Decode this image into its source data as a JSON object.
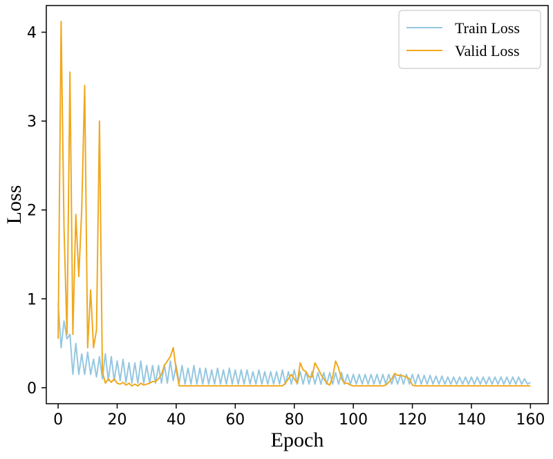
{
  "chart_data": {
    "type": "line",
    "title": "",
    "xlabel": "Epoch",
    "ylabel": "Loss",
    "xlim": [
      -4,
      166
    ],
    "ylim": [
      -0.18,
      4.3
    ],
    "x_ticks": [
      0,
      20,
      40,
      60,
      80,
      100,
      120,
      140,
      160
    ],
    "x_tick_labels": [
      "0",
      "20",
      "40",
      "60",
      "80",
      "100",
      "120",
      "140",
      "160"
    ],
    "y_ticks": [
      0,
      1,
      2,
      3,
      4
    ],
    "y_tick_labels": [
      "0",
      "1",
      "2",
      "3",
      "4"
    ],
    "grid": false,
    "legend_position": "top-right",
    "series": [
      {
        "name": "Train Loss",
        "color": "#94c7e0",
        "points": [
          [
            0,
            0.95
          ],
          [
            1,
            0.45
          ],
          [
            2,
            0.75
          ],
          [
            3,
            0.55
          ],
          [
            4,
            0.6
          ],
          [
            5,
            0.15
          ],
          [
            6,
            0.5
          ],
          [
            7,
            0.15
          ],
          [
            8,
            0.38
          ],
          [
            9,
            0.15
          ],
          [
            10,
            0.4
          ],
          [
            11,
            0.15
          ],
          [
            12,
            0.32
          ],
          [
            13,
            0.12
          ],
          [
            14,
            0.35
          ],
          [
            15,
            0.1
          ],
          [
            16,
            0.38
          ],
          [
            17,
            0.08
          ],
          [
            18,
            0.35
          ],
          [
            19,
            0.08
          ],
          [
            20,
            0.3
          ],
          [
            21,
            0.08
          ],
          [
            22,
            0.32
          ],
          [
            23,
            0.06
          ],
          [
            24,
            0.28
          ],
          [
            25,
            0.05
          ],
          [
            26,
            0.28
          ],
          [
            27,
            0.05
          ],
          [
            28,
            0.3
          ],
          [
            29,
            0.05
          ],
          [
            30,
            0.25
          ],
          [
            31,
            0.05
          ],
          [
            32,
            0.25
          ],
          [
            33,
            0.05
          ],
          [
            34,
            0.25
          ],
          [
            35,
            0.05
          ],
          [
            36,
            0.26
          ],
          [
            37,
            0.05
          ],
          [
            38,
            0.3
          ],
          [
            39,
            0.08
          ],
          [
            40,
            0.25
          ],
          [
            41,
            0.05
          ],
          [
            42,
            0.25
          ],
          [
            43,
            0.04
          ],
          [
            44,
            0.22
          ],
          [
            45,
            0.04
          ],
          [
            46,
            0.25
          ],
          [
            47,
            0.04
          ],
          [
            48,
            0.22
          ],
          [
            49,
            0.04
          ],
          [
            50,
            0.22
          ],
          [
            51,
            0.04
          ],
          [
            52,
            0.2
          ],
          [
            53,
            0.04
          ],
          [
            54,
            0.22
          ],
          [
            55,
            0.04
          ],
          [
            56,
            0.2
          ],
          [
            57,
            0.04
          ],
          [
            58,
            0.22
          ],
          [
            59,
            0.04
          ],
          [
            60,
            0.2
          ],
          [
            61,
            0.04
          ],
          [
            62,
            0.2
          ],
          [
            63,
            0.04
          ],
          [
            64,
            0.2
          ],
          [
            65,
            0.04
          ],
          [
            66,
            0.18
          ],
          [
            67,
            0.04
          ],
          [
            68,
            0.2
          ],
          [
            69,
            0.04
          ],
          [
            70,
            0.18
          ],
          [
            71,
            0.04
          ],
          [
            72,
            0.18
          ],
          [
            73,
            0.04
          ],
          [
            74,
            0.18
          ],
          [
            75,
            0.04
          ],
          [
            76,
            0.2
          ],
          [
            77,
            0.04
          ],
          [
            78,
            0.18
          ],
          [
            79,
            0.04
          ],
          [
            80,
            0.2
          ],
          [
            81,
            0.04
          ],
          [
            82,
            0.18
          ],
          [
            83,
            0.04
          ],
          [
            84,
            0.18
          ],
          [
            85,
            0.04
          ],
          [
            86,
            0.18
          ],
          [
            87,
            0.04
          ],
          [
            88,
            0.17
          ],
          [
            89,
            0.04
          ],
          [
            90,
            0.17
          ],
          [
            91,
            0.04
          ],
          [
            92,
            0.17
          ],
          [
            93,
            0.04
          ],
          [
            94,
            0.17
          ],
          [
            95,
            0.04
          ],
          [
            96,
            0.17
          ],
          [
            97,
            0.04
          ],
          [
            98,
            0.15
          ],
          [
            99,
            0.04
          ],
          [
            100,
            0.15
          ],
          [
            101,
            0.04
          ],
          [
            102,
            0.15
          ],
          [
            103,
            0.04
          ],
          [
            104,
            0.15
          ],
          [
            105,
            0.04
          ],
          [
            106,
            0.15
          ],
          [
            107,
            0.04
          ],
          [
            108,
            0.15
          ],
          [
            109,
            0.04
          ],
          [
            110,
            0.15
          ],
          [
            111,
            0.04
          ],
          [
            112,
            0.15
          ],
          [
            113,
            0.04
          ],
          [
            114,
            0.15
          ],
          [
            115,
            0.04
          ],
          [
            116,
            0.15
          ],
          [
            117,
            0.04
          ],
          [
            118,
            0.15
          ],
          [
            119,
            0.04
          ],
          [
            120,
            0.15
          ],
          [
            121,
            0.04
          ],
          [
            122,
            0.15
          ],
          [
            123,
            0.04
          ],
          [
            124,
            0.14
          ],
          [
            125,
            0.04
          ],
          [
            126,
            0.14
          ],
          [
            127,
            0.04
          ],
          [
            128,
            0.13
          ],
          [
            129,
            0.04
          ],
          [
            130,
            0.13
          ],
          [
            131,
            0.04
          ],
          [
            132,
            0.12
          ],
          [
            133,
            0.04
          ],
          [
            134,
            0.12
          ],
          [
            135,
            0.04
          ],
          [
            136,
            0.12
          ],
          [
            137,
            0.04
          ],
          [
            138,
            0.12
          ],
          [
            139,
            0.04
          ],
          [
            140,
            0.12
          ],
          [
            141,
            0.04
          ],
          [
            142,
            0.12
          ],
          [
            143,
            0.04
          ],
          [
            144,
            0.12
          ],
          [
            145,
            0.04
          ],
          [
            146,
            0.12
          ],
          [
            147,
            0.04
          ],
          [
            148,
            0.12
          ],
          [
            149,
            0.04
          ],
          [
            150,
            0.12
          ],
          [
            151,
            0.04
          ],
          [
            152,
            0.12
          ],
          [
            153,
            0.04
          ],
          [
            154,
            0.12
          ],
          [
            155,
            0.04
          ],
          [
            156,
            0.12
          ],
          [
            157,
            0.04
          ],
          [
            158,
            0.1
          ],
          [
            159,
            0.04
          ],
          [
            160,
            0.06
          ]
        ]
      },
      {
        "name": "Valid Loss",
        "color": "#f0a81c",
        "points": [
          [
            0,
            0.55
          ],
          [
            1,
            4.12
          ],
          [
            2,
            1.8
          ],
          [
            3,
            0.6
          ],
          [
            4,
            3.55
          ],
          [
            5,
            0.6
          ],
          [
            6,
            1.95
          ],
          [
            7,
            1.25
          ],
          [
            8,
            2.0
          ],
          [
            9,
            3.4
          ],
          [
            10,
            0.45
          ],
          [
            11,
            1.1
          ],
          [
            12,
            0.45
          ],
          [
            13,
            0.65
          ],
          [
            14,
            3.0
          ],
          [
            15,
            0.18
          ],
          [
            16,
            0.05
          ],
          [
            17,
            0.1
          ],
          [
            18,
            0.06
          ],
          [
            19,
            0.1
          ],
          [
            20,
            0.05
          ],
          [
            21,
            0.04
          ],
          [
            22,
            0.06
          ],
          [
            23,
            0.03
          ],
          [
            24,
            0.05
          ],
          [
            25,
            0.02
          ],
          [
            26,
            0.04
          ],
          [
            27,
            0.02
          ],
          [
            28,
            0.05
          ],
          [
            29,
            0.03
          ],
          [
            30,
            0.04
          ],
          [
            31,
            0.05
          ],
          [
            32,
            0.07
          ],
          [
            33,
            0.07
          ],
          [
            34,
            0.1
          ],
          [
            35,
            0.15
          ],
          [
            36,
            0.25
          ],
          [
            37,
            0.3
          ],
          [
            38,
            0.35
          ],
          [
            39,
            0.45
          ],
          [
            40,
            0.2
          ],
          [
            41,
            0.02
          ],
          [
            42,
            0.02
          ],
          [
            43,
            0.02
          ],
          [
            44,
            0.02
          ],
          [
            45,
            0.02
          ],
          [
            46,
            0.02
          ],
          [
            47,
            0.02
          ],
          [
            48,
            0.02
          ],
          [
            49,
            0.02
          ],
          [
            50,
            0.02
          ],
          [
            51,
            0.02
          ],
          [
            52,
            0.02
          ],
          [
            53,
            0.02
          ],
          [
            54,
            0.02
          ],
          [
            55,
            0.02
          ],
          [
            56,
            0.02
          ],
          [
            57,
            0.02
          ],
          [
            58,
            0.02
          ],
          [
            59,
            0.02
          ],
          [
            60,
            0.02
          ],
          [
            61,
            0.02
          ],
          [
            62,
            0.02
          ],
          [
            63,
            0.02
          ],
          [
            64,
            0.02
          ],
          [
            65,
            0.02
          ],
          [
            66,
            0.02
          ],
          [
            67,
            0.02
          ],
          [
            68,
            0.02
          ],
          [
            69,
            0.02
          ],
          [
            70,
            0.02
          ],
          [
            71,
            0.02
          ],
          [
            72,
            0.02
          ],
          [
            73,
            0.02
          ],
          [
            74,
            0.02
          ],
          [
            75,
            0.02
          ],
          [
            76,
            0.02
          ],
          [
            77,
            0.05
          ],
          [
            78,
            0.1
          ],
          [
            79,
            0.15
          ],
          [
            80,
            0.1
          ],
          [
            81,
            0.05
          ],
          [
            82,
            0.28
          ],
          [
            83,
            0.2
          ],
          [
            84,
            0.18
          ],
          [
            85,
            0.12
          ],
          [
            86,
            0.12
          ],
          [
            87,
            0.28
          ],
          [
            88,
            0.22
          ],
          [
            89,
            0.15
          ],
          [
            90,
            0.1
          ],
          [
            91,
            0.05
          ],
          [
            92,
            0.03
          ],
          [
            93,
            0.12
          ],
          [
            94,
            0.3
          ],
          [
            95,
            0.22
          ],
          [
            96,
            0.1
          ],
          [
            97,
            0.05
          ],
          [
            98,
            0.05
          ],
          [
            99,
            0.03
          ],
          [
            100,
            0.02
          ],
          [
            101,
            0.02
          ],
          [
            102,
            0.02
          ],
          [
            103,
            0.02
          ],
          [
            104,
            0.02
          ],
          [
            105,
            0.02
          ],
          [
            106,
            0.02
          ],
          [
            107,
            0.02
          ],
          [
            108,
            0.02
          ],
          [
            109,
            0.02
          ],
          [
            110,
            0.02
          ],
          [
            111,
            0.03
          ],
          [
            112,
            0.06
          ],
          [
            113,
            0.1
          ],
          [
            114,
            0.16
          ],
          [
            115,
            0.14
          ],
          [
            116,
            0.14
          ],
          [
            117,
            0.13
          ],
          [
            118,
            0.12
          ],
          [
            119,
            0.1
          ],
          [
            120,
            0.03
          ],
          [
            121,
            0.02
          ],
          [
            122,
            0.02
          ],
          [
            123,
            0.02
          ],
          [
            124,
            0.02
          ],
          [
            125,
            0.02
          ],
          [
            126,
            0.02
          ],
          [
            127,
            0.02
          ],
          [
            128,
            0.02
          ],
          [
            129,
            0.02
          ],
          [
            130,
            0.02
          ],
          [
            131,
            0.02
          ],
          [
            132,
            0.02
          ],
          [
            133,
            0.02
          ],
          [
            134,
            0.02
          ],
          [
            135,
            0.02
          ],
          [
            136,
            0.02
          ],
          [
            137,
            0.02
          ],
          [
            138,
            0.02
          ],
          [
            139,
            0.02
          ],
          [
            140,
            0.02
          ],
          [
            141,
            0.02
          ],
          [
            142,
            0.02
          ],
          [
            143,
            0.02
          ],
          [
            144,
            0.02
          ],
          [
            145,
            0.02
          ],
          [
            146,
            0.02
          ],
          [
            147,
            0.02
          ],
          [
            148,
            0.02
          ],
          [
            149,
            0.02
          ],
          [
            150,
            0.02
          ],
          [
            151,
            0.02
          ],
          [
            152,
            0.02
          ],
          [
            153,
            0.02
          ],
          [
            154,
            0.02
          ],
          [
            155,
            0.02
          ],
          [
            156,
            0.02
          ],
          [
            157,
            0.02
          ],
          [
            158,
            0.02
          ],
          [
            159,
            0.02
          ],
          [
            160,
            0.02
          ]
        ]
      }
    ]
  }
}
